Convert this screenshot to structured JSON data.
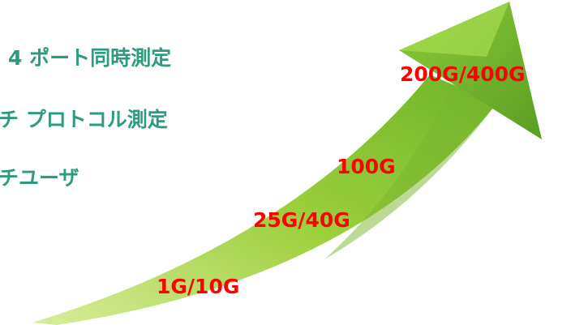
{
  "features": [
    "4 ポート同時測定",
    "チ プロトコル測定",
    "チユーザ"
  ],
  "speeds": [
    "200G/400G",
    "100G",
    "25G/40G",
    "1G/10G"
  ]
}
